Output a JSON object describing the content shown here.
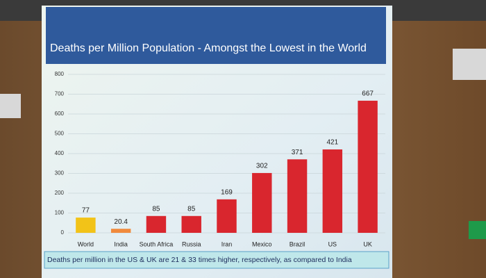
{
  "chart_data": {
    "type": "bar",
    "title": "Deaths per Million Population - Amongst the Lowest in the World",
    "categories": [
      "World",
      "India",
      "South Africa",
      "Russia",
      "Iran",
      "Mexico",
      "Brazil",
      "US",
      "UK"
    ],
    "values": [
      77,
      20.4,
      85,
      85,
      169,
      302,
      371,
      421,
      667
    ],
    "colors": [
      "#f2c318",
      "#f08a3c",
      "#d9262e",
      "#d9262e",
      "#d9262e",
      "#d9262e",
      "#d9262e",
      "#d9262e",
      "#d9262e"
    ],
    "ylim": [
      0,
      800
    ],
    "yticks": [
      0,
      100,
      200,
      300,
      400,
      500,
      600,
      700,
      800
    ],
    "grid": true,
    "note": "Deaths per million in the US & UK are 21 & 33 times higher, respectively, as compared to India"
  }
}
